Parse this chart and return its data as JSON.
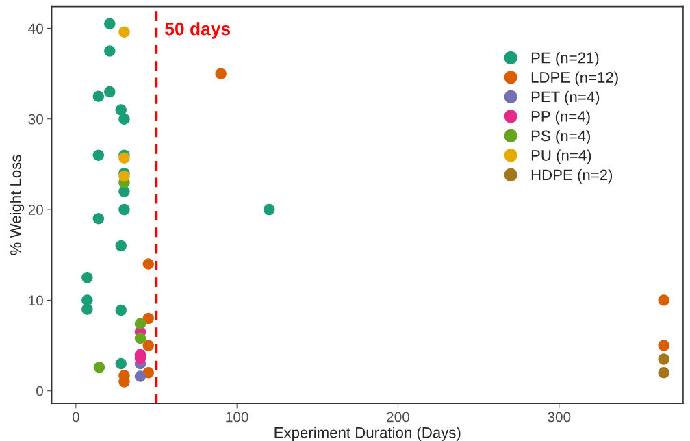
{
  "chart_data": {
    "type": "scatter",
    "xlabel": "Experiment Duration (Days)",
    "ylabel": "% Weight Loss",
    "xlim": [
      -15,
      377
    ],
    "ylim": [
      -1.4,
      42.4
    ],
    "xticks": [
      0,
      100,
      200,
      300
    ],
    "yticks": [
      0,
      10,
      20,
      30,
      40
    ],
    "grid": false,
    "legend": "top right",
    "marker": "circle",
    "ref_lines": [
      {
        "axis": "x",
        "value": 50,
        "label": "50 days",
        "color": "#ff0000",
        "line_style": "dashed"
      }
    ],
    "series": [
      {
        "name": "PE (n=21)",
        "color": "#1b9e77",
        "x": [
          21,
          21,
          14,
          21,
          28,
          30,
          30,
          14,
          30,
          30,
          30,
          14,
          28,
          7,
          7,
          7,
          28,
          28,
          120
        ],
        "values": [
          40.5,
          37.5,
          32.5,
          33,
          31,
          30,
          26,
          26,
          24,
          22,
          20,
          19,
          16,
          12.5,
          10,
          9,
          8.9,
          3,
          20
        ]
      },
      {
        "name": "LDPE (n=12)",
        "color": "#d95f02",
        "x": [
          90,
          45,
          45,
          45,
          45,
          30,
          30,
          365,
          365
        ],
        "values": [
          35,
          14,
          8,
          5,
          2,
          1.7,
          1,
          10,
          5
        ]
      },
      {
        "name": "PET (n=4)",
        "color": "#7570b3",
        "x": [
          40,
          40
        ],
        "values": [
          3,
          1.6
        ]
      },
      {
        "name": "PP (n=4)",
        "color": "#e7298a",
        "x": [
          40,
          40,
          40
        ],
        "values": [
          6.5,
          4,
          3.6
        ]
      },
      {
        "name": "PS (n=4)",
        "color": "#66a61e",
        "x": [
          14.5,
          40,
          40,
          30
        ],
        "values": [
          2.6,
          7.4,
          5.8,
          23
        ]
      },
      {
        "name": "PU (n=4)",
        "color": "#e6ab02",
        "x": [
          30,
          30,
          30
        ],
        "values": [
          39.6,
          25.7,
          23.7
        ]
      },
      {
        "name": "HDPE (n=2)",
        "color": "#a6761d",
        "x": [
          365,
          365
        ],
        "values": [
          3.5,
          2
        ]
      }
    ]
  }
}
